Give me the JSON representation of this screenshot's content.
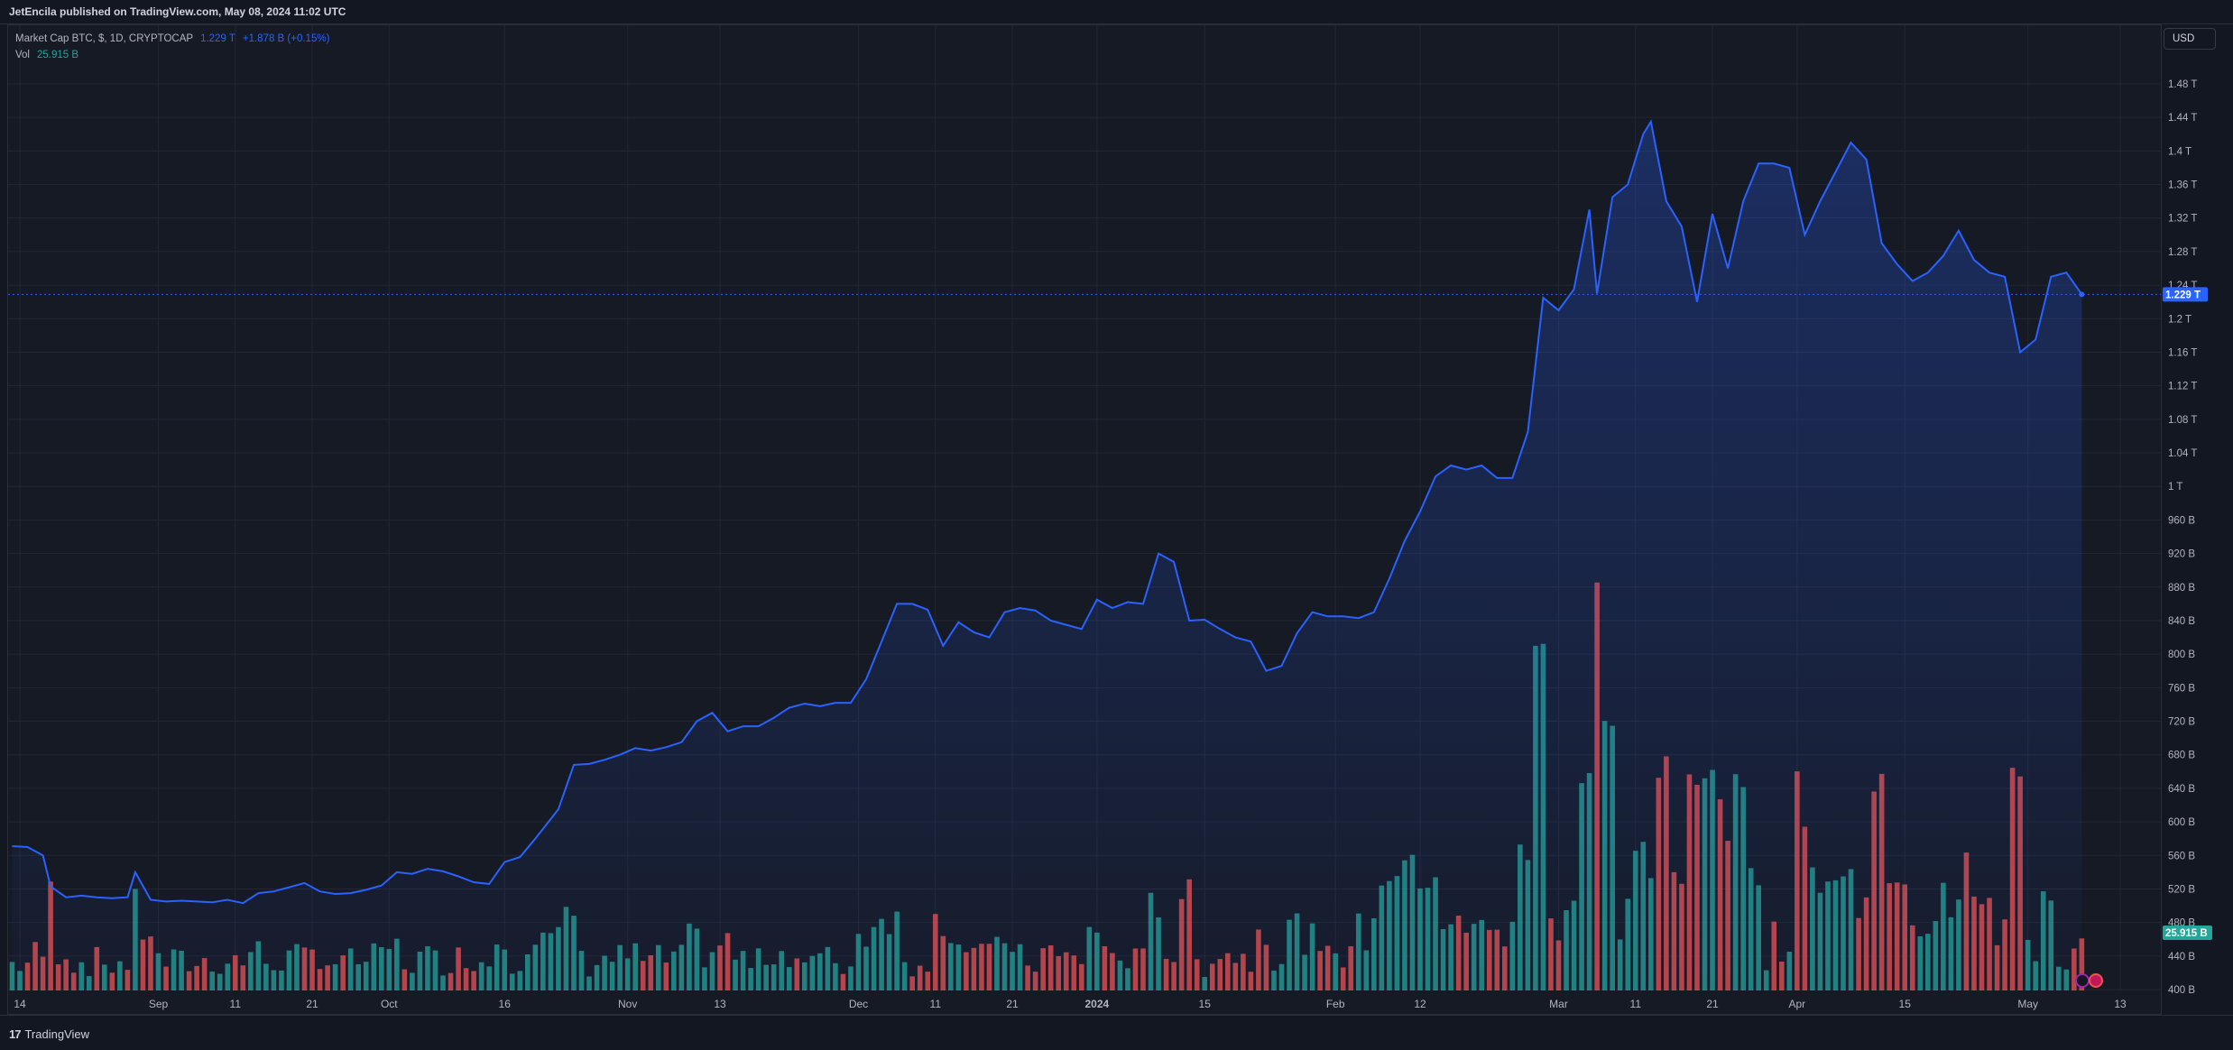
{
  "header": {
    "published": "JetEncila published on TradingView.com, May 08, 2024 11:02 UTC"
  },
  "legend": {
    "symbol": "Market Cap BTC, $, 1D, CRYPTOCAP",
    "last": "1.229 T",
    "change": "+1.878 B (+0.15%)",
    "vol_label": "Vol",
    "vol_value": "25.915 B"
  },
  "currency": "USD",
  "footer": {
    "brand": "TradingView",
    "logo_mark": "17"
  },
  "colors": {
    "line": "#2962ff",
    "up": "#26a69a",
    "down": "#ef5350",
    "grid": "#232734"
  },
  "chart_data": {
    "type": "area",
    "title": "Market Cap BTC, $, 1D, CRYPTOCAP",
    "y_unit": "USD",
    "ylim_billions": [
      400,
      1500
    ],
    "y_ticks": [
      "400 B",
      "440 B",
      "480 B",
      "520 B",
      "560 B",
      "600 B",
      "640 B",
      "680 B",
      "720 B",
      "760 B",
      "800 B",
      "840 B",
      "880 B",
      "920 B",
      "960 B",
      "1 T",
      "1.04 T",
      "1.08 T",
      "1.12 T",
      "1.16 T",
      "1.2 T",
      "1.24 T",
      "1.28 T",
      "1.32 T",
      "1.36 T",
      "1.4 T",
      "1.44 T",
      "1.48 T"
    ],
    "x_ticks": [
      {
        "label": "14",
        "date": "2023-08-14"
      },
      {
        "label": "Sep",
        "date": "2023-09-01"
      },
      {
        "label": "11",
        "date": "2023-09-11"
      },
      {
        "label": "21",
        "date": "2023-09-21"
      },
      {
        "label": "Oct",
        "date": "2023-10-01"
      },
      {
        "label": "16",
        "date": "2023-10-16"
      },
      {
        "label": "Nov",
        "date": "2023-11-01"
      },
      {
        "label": "13",
        "date": "2023-11-13"
      },
      {
        "label": "Dec",
        "date": "2023-12-01"
      },
      {
        "label": "11",
        "date": "2023-12-11"
      },
      {
        "label": "21",
        "date": "2023-12-21"
      },
      {
        "label": "2024",
        "date": "2024-01-01"
      },
      {
        "label": "15",
        "date": "2024-01-15"
      },
      {
        "label": "Feb",
        "date": "2024-02-01"
      },
      {
        "label": "12",
        "date": "2024-02-12"
      },
      {
        "label": "Mar",
        "date": "2024-03-01"
      },
      {
        "label": "11",
        "date": "2024-03-11"
      },
      {
        "label": "21",
        "date": "2024-03-21"
      },
      {
        "label": "Apr",
        "date": "2024-04-01"
      },
      {
        "label": "15",
        "date": "2024-04-15"
      },
      {
        "label": "May",
        "date": "2024-05-01"
      },
      {
        "label": "13",
        "date": "2024-05-13"
      }
    ],
    "last_price_label": "1.229 T",
    "last_volume_label": "25.915 B",
    "series": [
      {
        "name": "Market Cap BTC",
        "unit": "B USD",
        "points": [
          [
            "2023-08-13",
            571
          ],
          [
            "2023-08-15",
            570
          ],
          [
            "2023-08-17",
            560
          ],
          [
            "2023-08-18",
            523
          ],
          [
            "2023-08-20",
            510
          ],
          [
            "2023-08-22",
            512
          ],
          [
            "2023-08-24",
            510
          ],
          [
            "2023-08-26",
            509
          ],
          [
            "2023-08-28",
            510
          ],
          [
            "2023-08-29",
            540
          ],
          [
            "2023-08-31",
            507
          ],
          [
            "2023-09-02",
            505
          ],
          [
            "2023-09-04",
            506
          ],
          [
            "2023-09-06",
            505
          ],
          [
            "2023-09-08",
            504
          ],
          [
            "2023-09-10",
            507
          ],
          [
            "2023-09-12",
            503
          ],
          [
            "2023-09-14",
            515
          ],
          [
            "2023-09-16",
            517
          ],
          [
            "2023-09-18",
            522
          ],
          [
            "2023-09-20",
            527
          ],
          [
            "2023-09-22",
            517
          ],
          [
            "2023-09-24",
            514
          ],
          [
            "2023-09-26",
            515
          ],
          [
            "2023-09-28",
            519
          ],
          [
            "2023-09-30",
            524
          ],
          [
            "2023-10-02",
            540
          ],
          [
            "2023-10-04",
            538
          ],
          [
            "2023-10-06",
            544
          ],
          [
            "2023-10-08",
            541
          ],
          [
            "2023-10-10",
            535
          ],
          [
            "2023-10-12",
            528
          ],
          [
            "2023-10-14",
            526
          ],
          [
            "2023-10-16",
            552
          ],
          [
            "2023-10-18",
            558
          ],
          [
            "2023-10-20",
            580
          ],
          [
            "2023-10-23",
            615
          ],
          [
            "2023-10-25",
            668
          ],
          [
            "2023-10-27",
            669
          ],
          [
            "2023-10-29",
            674
          ],
          [
            "2023-10-31",
            680
          ],
          [
            "2023-11-02",
            688
          ],
          [
            "2023-11-04",
            685
          ],
          [
            "2023-11-06",
            689
          ],
          [
            "2023-11-08",
            695
          ],
          [
            "2023-11-10",
            720
          ],
          [
            "2023-11-12",
            730
          ],
          [
            "2023-11-14",
            708
          ],
          [
            "2023-11-16",
            714
          ],
          [
            "2023-11-18",
            714
          ],
          [
            "2023-11-20",
            724
          ],
          [
            "2023-11-22",
            736
          ],
          [
            "2023-11-24",
            741
          ],
          [
            "2023-11-26",
            738
          ],
          [
            "2023-11-28",
            742
          ],
          [
            "2023-11-30",
            742
          ],
          [
            "2023-12-02",
            770
          ],
          [
            "2023-12-04",
            815
          ],
          [
            "2023-12-06",
            860
          ],
          [
            "2023-12-08",
            860
          ],
          [
            "2023-12-10",
            853
          ],
          [
            "2023-12-12",
            810
          ],
          [
            "2023-12-14",
            838
          ],
          [
            "2023-12-16",
            826
          ],
          [
            "2023-12-18",
            820
          ],
          [
            "2023-12-20",
            850
          ],
          [
            "2023-12-22",
            855
          ],
          [
            "2023-12-24",
            852
          ],
          [
            "2023-12-26",
            840
          ],
          [
            "2023-12-28",
            835
          ],
          [
            "2023-12-30",
            830
          ],
          [
            "2024-01-01",
            865
          ],
          [
            "2024-01-03",
            855
          ],
          [
            "2024-01-05",
            862
          ],
          [
            "2024-01-07",
            860
          ],
          [
            "2024-01-09",
            920
          ],
          [
            "2024-01-11",
            910
          ],
          [
            "2024-01-13",
            840
          ],
          [
            "2024-01-15",
            841
          ],
          [
            "2024-01-17",
            830
          ],
          [
            "2024-01-19",
            820
          ],
          [
            "2024-01-21",
            815
          ],
          [
            "2024-01-23",
            780
          ],
          [
            "2024-01-25",
            786
          ],
          [
            "2024-01-27",
            825
          ],
          [
            "2024-01-29",
            850
          ],
          [
            "2024-01-31",
            845
          ],
          [
            "2024-02-02",
            845
          ],
          [
            "2024-02-04",
            843
          ],
          [
            "2024-02-06",
            850
          ],
          [
            "2024-02-08",
            890
          ],
          [
            "2024-02-10",
            935
          ],
          [
            "2024-02-12",
            970
          ],
          [
            "2024-02-14",
            1012
          ],
          [
            "2024-02-16",
            1025
          ],
          [
            "2024-02-18",
            1020
          ],
          [
            "2024-02-20",
            1025
          ],
          [
            "2024-02-22",
            1010
          ],
          [
            "2024-02-24",
            1010
          ],
          [
            "2024-02-26",
            1065
          ],
          [
            "2024-02-28",
            1225
          ],
          [
            "2024-03-01",
            1210
          ],
          [
            "2024-03-03",
            1235
          ],
          [
            "2024-03-05",
            1330
          ],
          [
            "2024-03-06",
            1230
          ],
          [
            "2024-03-08",
            1345
          ],
          [
            "2024-03-10",
            1360
          ],
          [
            "2024-03-12",
            1420
          ],
          [
            "2024-03-13",
            1435
          ],
          [
            "2024-03-15",
            1340
          ],
          [
            "2024-03-17",
            1310
          ],
          [
            "2024-03-19",
            1220
          ],
          [
            "2024-03-21",
            1325
          ],
          [
            "2024-03-23",
            1260
          ],
          [
            "2024-03-25",
            1340
          ],
          [
            "2024-03-27",
            1385
          ],
          [
            "2024-03-29",
            1385
          ],
          [
            "2024-03-31",
            1380
          ],
          [
            "2024-04-02",
            1300
          ],
          [
            "2024-04-04",
            1340
          ],
          [
            "2024-04-06",
            1375
          ],
          [
            "2024-04-08",
            1410
          ],
          [
            "2024-04-10",
            1390
          ],
          [
            "2024-04-12",
            1290
          ],
          [
            "2024-04-14",
            1265
          ],
          [
            "2024-04-16",
            1245
          ],
          [
            "2024-04-18",
            1255
          ],
          [
            "2024-04-20",
            1275
          ],
          [
            "2024-04-22",
            1305
          ],
          [
            "2024-04-24",
            1270
          ],
          [
            "2024-04-26",
            1255
          ],
          [
            "2024-04-28",
            1250
          ],
          [
            "2024-04-30",
            1160
          ],
          [
            "2024-05-02",
            1175
          ],
          [
            "2024-05-04",
            1250
          ],
          [
            "2024-05-06",
            1255
          ],
          [
            "2024-05-08",
            1229
          ]
        ]
      }
    ]
  }
}
